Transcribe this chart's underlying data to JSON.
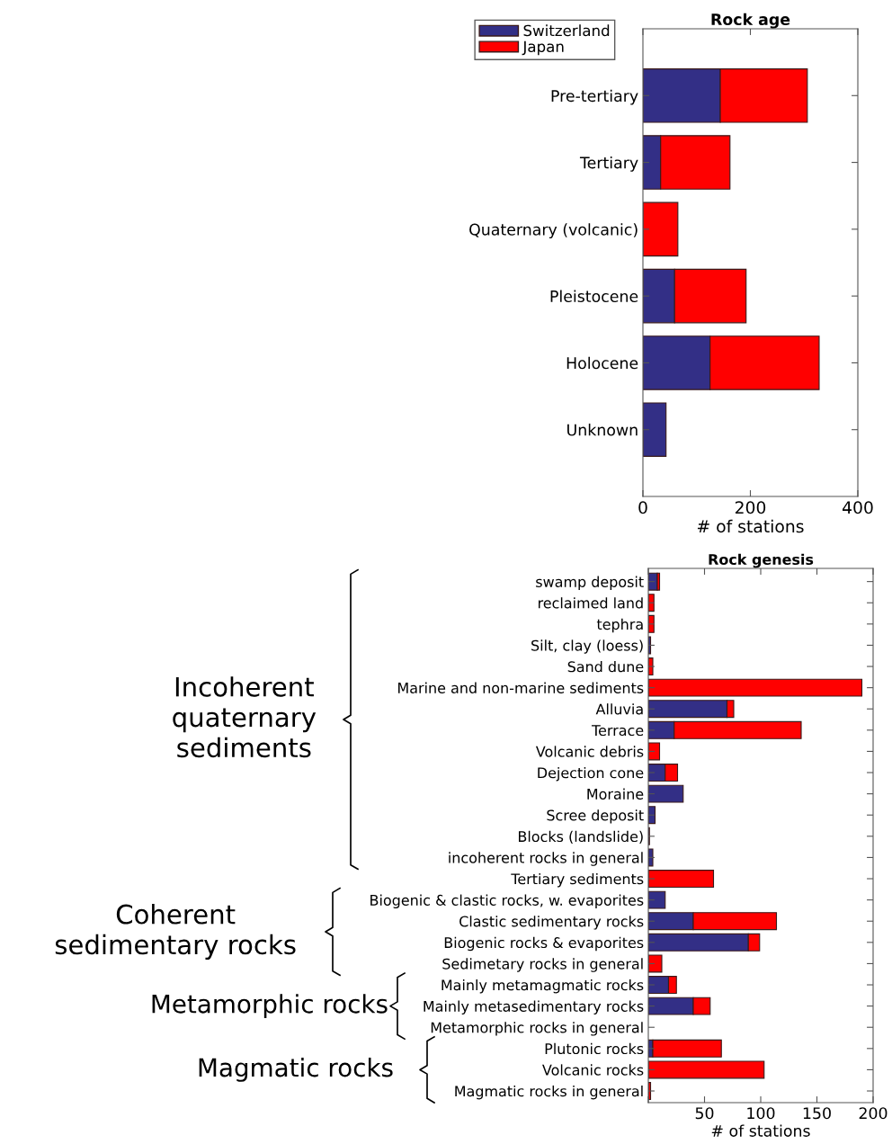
{
  "chart_data": [
    {
      "type": "bar",
      "title": "Rock age",
      "orientation": "horizontal",
      "stacked": true,
      "xlabel": "# of stations",
      "categories": [
        "Pre-tertiary",
        "Tertiary",
        "Quaternary (volcanic)",
        "Pleistocene",
        "Holocene",
        "Unknown"
      ],
      "series": [
        {
          "name": "Switzerland",
          "color": "#332f86",
          "values": [
            144,
            33,
            0,
            59,
            125,
            43
          ]
        },
        {
          "name": "Japan",
          "color": "#ff0000",
          "values": [
            162,
            129,
            65,
            133,
            203,
            0
          ]
        }
      ],
      "xlim": [
        0,
        400
      ],
      "xticks": [
        0,
        200,
        400
      ],
      "legend": "top left",
      "grid": false
    },
    {
      "type": "bar",
      "title": "Rock genesis",
      "orientation": "horizontal",
      "stacked": true,
      "xlabel": "# of stations",
      "categories": [
        "swamp deposit",
        "reclaimed land",
        "tephra",
        "Silt, clay (loess)",
        "Sand dune",
        "Marine and non-marine sediments",
        "Alluvia",
        "Terrace",
        "Volcanic debris",
        "Dejection cone",
        "Moraine",
        "Scree deposit",
        "Blocks (landslide)",
        "incoherent rocks in general",
        "Tertiary sediments",
        "Biogenic & clastic rocks, w. evaporites",
        "Clastic sedimentary rocks",
        "Biogenic rocks & evaporites",
        "Sedimetary rocks in general",
        "Mainly metamagmatic rocks",
        "Mainly metasedimentary rocks",
        "Metamorphic rocks in general",
        "Plutonic rocks",
        "Volcanic rocks",
        "Magmatic rocks in general"
      ],
      "series": [
        {
          "color": "#332f86",
          "values": [
            8,
            0,
            0,
            2,
            0,
            0,
            70,
            23,
            0,
            15,
            31,
            6,
            1,
            4,
            null,
            15,
            40,
            89,
            0,
            18,
            40,
            0,
            4,
            0,
            0
          ]
        },
        {
          "color": "#ff0000",
          "values": [
            2,
            5,
            5,
            0,
            4,
            190,
            6,
            113,
            10,
            11,
            0,
            0,
            0,
            0,
            58,
            0,
            74,
            10,
            12,
            7,
            15,
            0,
            61,
            103,
            2
          ]
        }
      ],
      "xlim": [
        0,
        200
      ],
      "xticks": [
        {
          "value": 0,
          "label": null
        },
        50,
        100,
        150,
        200
      ],
      "legend": false,
      "grid": false,
      "annotations": [
        "Incoherent\nquaternary\nsediments",
        "Coherent\nsedimentary rocks",
        "Metamorphic rocks",
        "Magmatic rocks"
      ]
    }
  ]
}
